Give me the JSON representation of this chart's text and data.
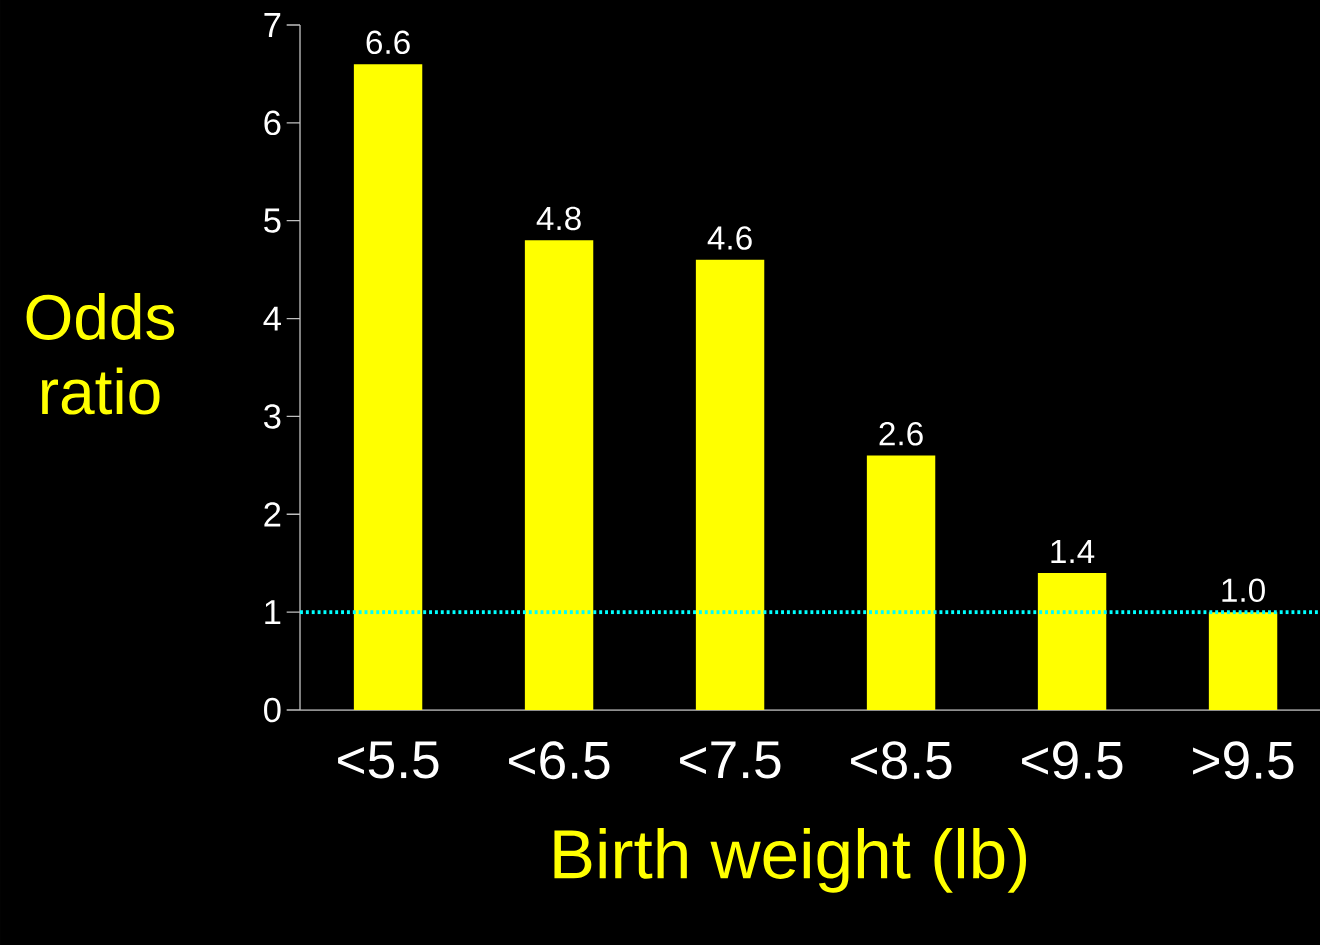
{
  "chart_data": {
    "type": "bar",
    "xlabel": "Birth weight (lb)",
    "ylabel": "Odds ratio",
    "categories": [
      "<5.5",
      "<6.5",
      "<7.5",
      "<8.5",
      "<9.5",
      ">9.5"
    ],
    "values": [
      6.6,
      4.8,
      4.6,
      2.6,
      1.4,
      1.0
    ],
    "color": "#ffff00",
    "value_labels": [
      "6.6",
      "4.8",
      "4.6",
      "2.6",
      "1.4",
      "1.0"
    ],
    "ylim": [
      0,
      7
    ],
    "yticks": [
      0,
      1,
      2,
      3,
      4,
      5,
      6,
      7
    ],
    "ref_lines": [
      {
        "axis": "y",
        "value": 1,
        "color": "#00ffff",
        "line_style": "dotted"
      }
    ]
  }
}
